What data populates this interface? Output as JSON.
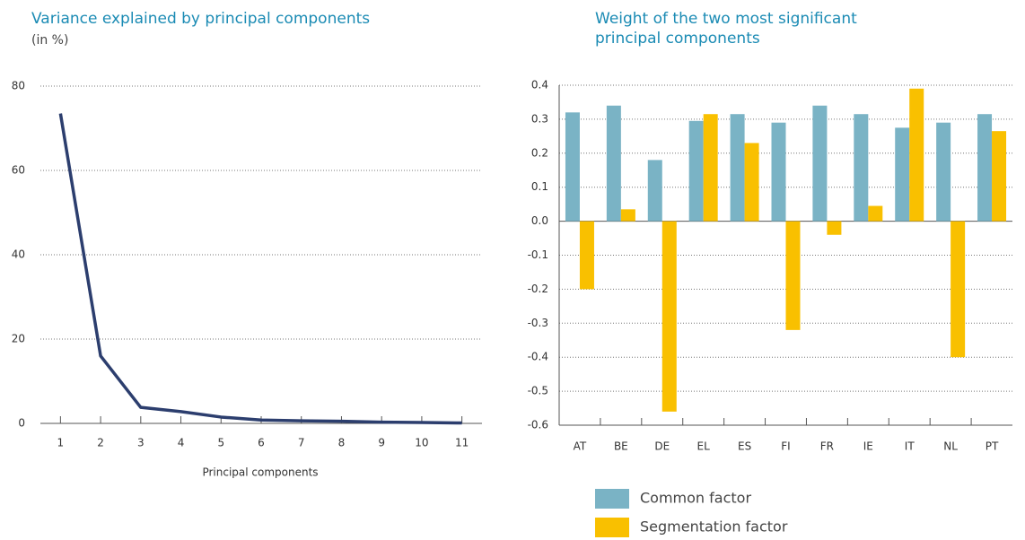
{
  "chart_data": [
    {
      "type": "line",
      "title": "Variance explained by principal components",
      "subtitle": "(in %)",
      "x_label": "Principal components",
      "x": [
        1,
        2,
        3,
        4,
        5,
        6,
        7,
        8,
        9,
        10,
        11
      ],
      "values": [
        73.5,
        16,
        3.8,
        2.8,
        1.5,
        0.8,
        0.6,
        0.5,
        0.3,
        0.2,
        0.1
      ],
      "color": "#2c3e6e",
      "xlim": [
        0.5,
        11.5
      ],
      "xticks": [
        1,
        2,
        3,
        4,
        5,
        6,
        7,
        8,
        9,
        10,
        11
      ],
      "ylim": [
        0,
        80
      ],
      "yticks": [
        0,
        20,
        40,
        60,
        80
      ],
      "grid": true
    },
    {
      "type": "bar",
      "title": "Weight of the two most significant principal components",
      "categories": [
        "AT",
        "BE",
        "DE",
        "EL",
        "ES",
        "FI",
        "FR",
        "IE",
        "IT",
        "NL",
        "PT"
      ],
      "series": [
        {
          "name": "Common factor",
          "color": "#7ab3c5",
          "values": [
            0.32,
            0.34,
            0.18,
            0.295,
            0.315,
            0.29,
            0.34,
            0.315,
            0.275,
            0.29,
            0.315
          ]
        },
        {
          "name": "Segmentation factor",
          "color": "#f9c000",
          "values": [
            -0.2,
            0.035,
            -0.56,
            0.315,
            0.23,
            -0.32,
            -0.04,
            0.045,
            0.39,
            -0.4,
            0.265
          ]
        }
      ],
      "ylim": [
        -0.6,
        0.4
      ],
      "yticks": [
        0.4,
        0.3,
        0.2,
        0.1,
        {
          "value": 0,
          "label": "0.0"
        },
        -0.1,
        -0.2,
        -0.3,
        -0.4,
        -0.5,
        -0.6
      ],
      "grid": true,
      "legend": "bottom"
    }
  ]
}
